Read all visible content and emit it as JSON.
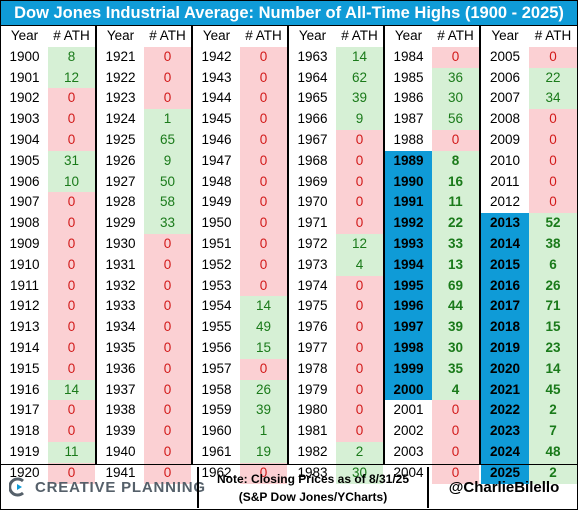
{
  "title": "Dow Jones Industrial Average: Number of All-Time Highs (1900 - 2025)",
  "headers": {
    "year": "Year",
    "ath": "# ATH"
  },
  "colors": {
    "green_bg": "#d6f0d5",
    "green_text": "#1a7a1a",
    "red_bg": "#fbd0d3",
    "red_text": "#d21a1a",
    "highlight": "#0f9bd7"
  },
  "columns": [
    {
      "rows": [
        {
          "year": "1900",
          "ath": "8"
        },
        {
          "year": "1901",
          "ath": "12"
        },
        {
          "year": "1902",
          "ath": "0"
        },
        {
          "year": "1903",
          "ath": "0"
        },
        {
          "year": "1904",
          "ath": "0"
        },
        {
          "year": "1905",
          "ath": "31"
        },
        {
          "year": "1906",
          "ath": "10"
        },
        {
          "year": "1907",
          "ath": "0"
        },
        {
          "year": "1908",
          "ath": "0"
        },
        {
          "year": "1909",
          "ath": "0"
        },
        {
          "year": "1910",
          "ath": "0"
        },
        {
          "year": "1911",
          "ath": "0"
        },
        {
          "year": "1912",
          "ath": "0"
        },
        {
          "year": "1913",
          "ath": "0"
        },
        {
          "year": "1914",
          "ath": "0"
        },
        {
          "year": "1915",
          "ath": "0"
        },
        {
          "year": "1916",
          "ath": "14"
        },
        {
          "year": "1917",
          "ath": "0"
        },
        {
          "year": "1918",
          "ath": "0"
        },
        {
          "year": "1919",
          "ath": "11"
        },
        {
          "year": "1920",
          "ath": "0"
        }
      ]
    },
    {
      "rows": [
        {
          "year": "1921",
          "ath": "0"
        },
        {
          "year": "1922",
          "ath": "0"
        },
        {
          "year": "1923",
          "ath": "0"
        },
        {
          "year": "1924",
          "ath": "1"
        },
        {
          "year": "1925",
          "ath": "65"
        },
        {
          "year": "1926",
          "ath": "9"
        },
        {
          "year": "1927",
          "ath": "50"
        },
        {
          "year": "1928",
          "ath": "58"
        },
        {
          "year": "1929",
          "ath": "33"
        },
        {
          "year": "1930",
          "ath": "0"
        },
        {
          "year": "1931",
          "ath": "0"
        },
        {
          "year": "1932",
          "ath": "0"
        },
        {
          "year": "1933",
          "ath": "0"
        },
        {
          "year": "1934",
          "ath": "0"
        },
        {
          "year": "1935",
          "ath": "0"
        },
        {
          "year": "1936",
          "ath": "0"
        },
        {
          "year": "1937",
          "ath": "0"
        },
        {
          "year": "1938",
          "ath": "0"
        },
        {
          "year": "1939",
          "ath": "0"
        },
        {
          "year": "1940",
          "ath": "0"
        },
        {
          "year": "1941",
          "ath": "0"
        }
      ]
    },
    {
      "rows": [
        {
          "year": "1942",
          "ath": "0"
        },
        {
          "year": "1943",
          "ath": "0"
        },
        {
          "year": "1944",
          "ath": "0"
        },
        {
          "year": "1945",
          "ath": "0"
        },
        {
          "year": "1946",
          "ath": "0"
        },
        {
          "year": "1947",
          "ath": "0"
        },
        {
          "year": "1948",
          "ath": "0"
        },
        {
          "year": "1949",
          "ath": "0"
        },
        {
          "year": "1950",
          "ath": "0"
        },
        {
          "year": "1951",
          "ath": "0"
        },
        {
          "year": "1952",
          "ath": "0"
        },
        {
          "year": "1953",
          "ath": "0"
        },
        {
          "year": "1954",
          "ath": "14"
        },
        {
          "year": "1955",
          "ath": "49"
        },
        {
          "year": "1956",
          "ath": "15"
        },
        {
          "year": "1957",
          "ath": "0"
        },
        {
          "year": "1958",
          "ath": "26"
        },
        {
          "year": "1959",
          "ath": "39"
        },
        {
          "year": "1960",
          "ath": "1"
        },
        {
          "year": "1961",
          "ath": "19"
        },
        {
          "year": "1962",
          "ath": "0"
        }
      ]
    },
    {
      "rows": [
        {
          "year": "1963",
          "ath": "14"
        },
        {
          "year": "1964",
          "ath": "62"
        },
        {
          "year": "1965",
          "ath": "39"
        },
        {
          "year": "1966",
          "ath": "9"
        },
        {
          "year": "1967",
          "ath": "0"
        },
        {
          "year": "1968",
          "ath": "0"
        },
        {
          "year": "1969",
          "ath": "0"
        },
        {
          "year": "1970",
          "ath": "0"
        },
        {
          "year": "1971",
          "ath": "0"
        },
        {
          "year": "1972",
          "ath": "12"
        },
        {
          "year": "1973",
          "ath": "4"
        },
        {
          "year": "1974",
          "ath": "0"
        },
        {
          "year": "1975",
          "ath": "0"
        },
        {
          "year": "1976",
          "ath": "0"
        },
        {
          "year": "1977",
          "ath": "0"
        },
        {
          "year": "1978",
          "ath": "0"
        },
        {
          "year": "1979",
          "ath": "0"
        },
        {
          "year": "1980",
          "ath": "0"
        },
        {
          "year": "1981",
          "ath": "0"
        },
        {
          "year": "1982",
          "ath": "2"
        },
        {
          "year": "1983",
          "ath": "30"
        }
      ]
    },
    {
      "rows": [
        {
          "year": "1984",
          "ath": "0"
        },
        {
          "year": "1985",
          "ath": "36"
        },
        {
          "year": "1986",
          "ath": "30"
        },
        {
          "year": "1987",
          "ath": "56"
        },
        {
          "year": "1988",
          "ath": "0"
        },
        {
          "year": "1989",
          "ath": "8",
          "hl": true
        },
        {
          "year": "1990",
          "ath": "16",
          "hl": true
        },
        {
          "year": "1991",
          "ath": "11",
          "hl": true
        },
        {
          "year": "1992",
          "ath": "22",
          "hl": true
        },
        {
          "year": "1993",
          "ath": "33",
          "hl": true
        },
        {
          "year": "1994",
          "ath": "13",
          "hl": true
        },
        {
          "year": "1995",
          "ath": "69",
          "hl": true
        },
        {
          "year": "1996",
          "ath": "44",
          "hl": true
        },
        {
          "year": "1997",
          "ath": "39",
          "hl": true
        },
        {
          "year": "1998",
          "ath": "30",
          "hl": true
        },
        {
          "year": "1999",
          "ath": "35",
          "hl": true
        },
        {
          "year": "2000",
          "ath": "4",
          "hl": true
        },
        {
          "year": "2001",
          "ath": "0"
        },
        {
          "year": "2002",
          "ath": "0"
        },
        {
          "year": "2003",
          "ath": "0"
        },
        {
          "year": "2004",
          "ath": "0"
        }
      ]
    },
    {
      "rows": [
        {
          "year": "2005",
          "ath": "0"
        },
        {
          "year": "2006",
          "ath": "22"
        },
        {
          "year": "2007",
          "ath": "34"
        },
        {
          "year": "2008",
          "ath": "0"
        },
        {
          "year": "2009",
          "ath": "0"
        },
        {
          "year": "2010",
          "ath": "0"
        },
        {
          "year": "2011",
          "ath": "0"
        },
        {
          "year": "2012",
          "ath": "0"
        },
        {
          "year": "2013",
          "ath": "52",
          "hl": true
        },
        {
          "year": "2014",
          "ath": "38",
          "hl": true
        },
        {
          "year": "2015",
          "ath": "6",
          "hl": true
        },
        {
          "year": "2016",
          "ath": "26",
          "hl": true
        },
        {
          "year": "2017",
          "ath": "71",
          "hl": true
        },
        {
          "year": "2018",
          "ath": "15",
          "hl": true
        },
        {
          "year": "2019",
          "ath": "23",
          "hl": true
        },
        {
          "year": "2020",
          "ath": "14",
          "hl": true
        },
        {
          "year": "2021",
          "ath": "45",
          "hl": true
        },
        {
          "year": "2022",
          "ath": "2",
          "hl": true
        },
        {
          "year": "2023",
          "ath": "7",
          "hl": true
        },
        {
          "year": "2024",
          "ath": "48",
          "hl": true
        },
        {
          "year": "2025",
          "ath": "2",
          "hl": true
        }
      ]
    }
  ],
  "footer": {
    "logo_text": "CREATIVE PLANNING",
    "logo_icon": "creative-planning-logo-icon",
    "note_line1": "Note: Closing Prices as of 8/31/25",
    "note_line2": "(S&P Dow Jones/YCharts)",
    "handle": "@CharlieBilello"
  }
}
